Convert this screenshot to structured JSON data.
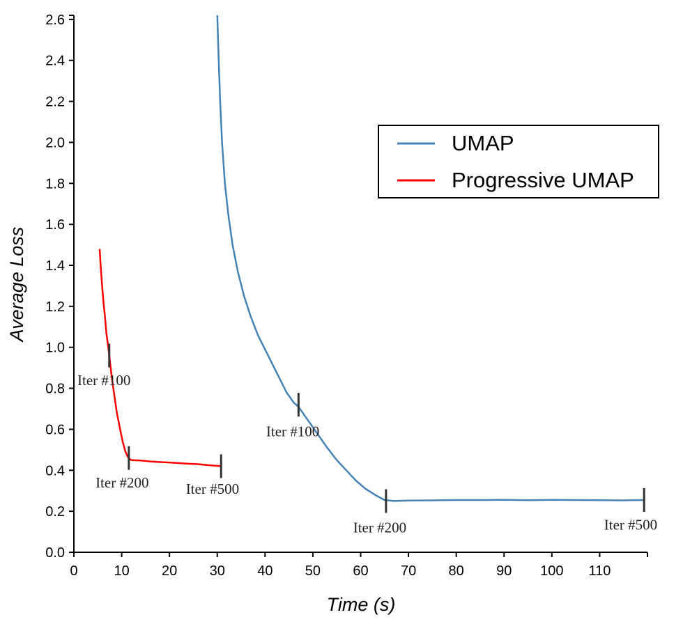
{
  "chart_data": {
    "type": "line",
    "title": "",
    "xlabel": "Time (s)",
    "ylabel": "Average Loss",
    "xlim": [
      0,
      120
    ],
    "ylim": [
      0,
      2.62
    ],
    "x_ticks": [
      0,
      10,
      20,
      30,
      40,
      50,
      60,
      70,
      80,
      90,
      100,
      110
    ],
    "y_ticks": [
      "0.0",
      "0.2",
      "0.4",
      "0.6",
      "0.8",
      "1.0",
      "1.2",
      "1.4",
      "1.6",
      "1.8",
      "2.0",
      "2.2",
      "2.4",
      "2.6"
    ],
    "grid": false,
    "legend_position": "top-right",
    "series": [
      {
        "name": "UMAP",
        "color": "#4682b4",
        "points": [
          [
            30.0,
            2.62
          ],
          [
            30.3,
            2.4
          ],
          [
            30.6,
            2.2
          ],
          [
            31.0,
            2.0
          ],
          [
            31.6,
            1.8
          ],
          [
            32.3,
            1.65
          ],
          [
            33.2,
            1.5
          ],
          [
            34.3,
            1.37
          ],
          [
            35.6,
            1.25
          ],
          [
            37.0,
            1.15
          ],
          [
            38.5,
            1.06
          ],
          [
            40.0,
            0.99
          ],
          [
            41.5,
            0.92
          ],
          [
            43.0,
            0.85
          ],
          [
            44.5,
            0.78
          ],
          [
            46.0,
            0.73
          ],
          [
            47.0,
            0.71
          ],
          [
            48.5,
            0.66
          ],
          [
            50.0,
            0.61
          ],
          [
            51.5,
            0.56
          ],
          [
            53.0,
            0.51
          ],
          [
            55.0,
            0.45
          ],
          [
            57.0,
            0.4
          ],
          [
            59.0,
            0.35
          ],
          [
            61.0,
            0.31
          ],
          [
            63.0,
            0.28
          ],
          [
            65.0,
            0.255
          ],
          [
            67.0,
            0.25
          ],
          [
            70.0,
            0.252
          ],
          [
            75.0,
            0.253
          ],
          [
            80.0,
            0.255
          ],
          [
            85.0,
            0.255
          ],
          [
            90.0,
            0.256
          ],
          [
            95.0,
            0.254
          ],
          [
            100.0,
            0.256
          ],
          [
            105.0,
            0.255
          ],
          [
            110.0,
            0.254
          ],
          [
            115.0,
            0.253
          ],
          [
            119.3,
            0.255
          ]
        ]
      },
      {
        "name": "Progressive UMAP",
        "color": "#ff0000",
        "points": [
          [
            5.4,
            1.48
          ],
          [
            5.6,
            1.4
          ],
          [
            5.9,
            1.3
          ],
          [
            6.2,
            1.22
          ],
          [
            6.5,
            1.15
          ],
          [
            6.8,
            1.07
          ],
          [
            7.2,
            1.0
          ],
          [
            7.6,
            0.92
          ],
          [
            8.0,
            0.84
          ],
          [
            8.5,
            0.76
          ],
          [
            9.0,
            0.68
          ],
          [
            9.6,
            0.61
          ],
          [
            10.2,
            0.54
          ],
          [
            10.8,
            0.49
          ],
          [
            11.4,
            0.46
          ],
          [
            12.0,
            0.45
          ],
          [
            14.0,
            0.448
          ],
          [
            16.0,
            0.443
          ],
          [
            18.0,
            0.44
          ],
          [
            20.0,
            0.438
          ],
          [
            22.0,
            0.435
          ],
          [
            24.0,
            0.432
          ],
          [
            26.0,
            0.43
          ],
          [
            28.0,
            0.425
          ],
          [
            30.8,
            0.42
          ]
        ]
      }
    ],
    "annotations": [
      {
        "series": "Progressive UMAP",
        "text": "Iter #100",
        "x": 7.4,
        "y": 0.96,
        "label_x": 6.3,
        "label_y": 0.84
      },
      {
        "series": "Progressive UMAP",
        "text": "Iter #200",
        "x": 11.5,
        "y": 0.46,
        "label_x": 10.1,
        "label_y": 0.34
      },
      {
        "series": "Progressive UMAP",
        "text": "Iter #500",
        "x": 30.8,
        "y": 0.42,
        "label_x": 29.0,
        "label_y": 0.31
      },
      {
        "series": "UMAP",
        "text": "Iter #100",
        "x": 47.0,
        "y": 0.72,
        "label_x": 45.8,
        "label_y": 0.59
      },
      {
        "series": "UMAP",
        "text": "Iter #200",
        "x": 65.3,
        "y": 0.25,
        "label_x": 64.0,
        "label_y": 0.12
      },
      {
        "series": "UMAP",
        "text": "Iter #500",
        "x": 119.3,
        "y": 0.255,
        "label_x": 116.5,
        "label_y": 0.135
      }
    ]
  }
}
